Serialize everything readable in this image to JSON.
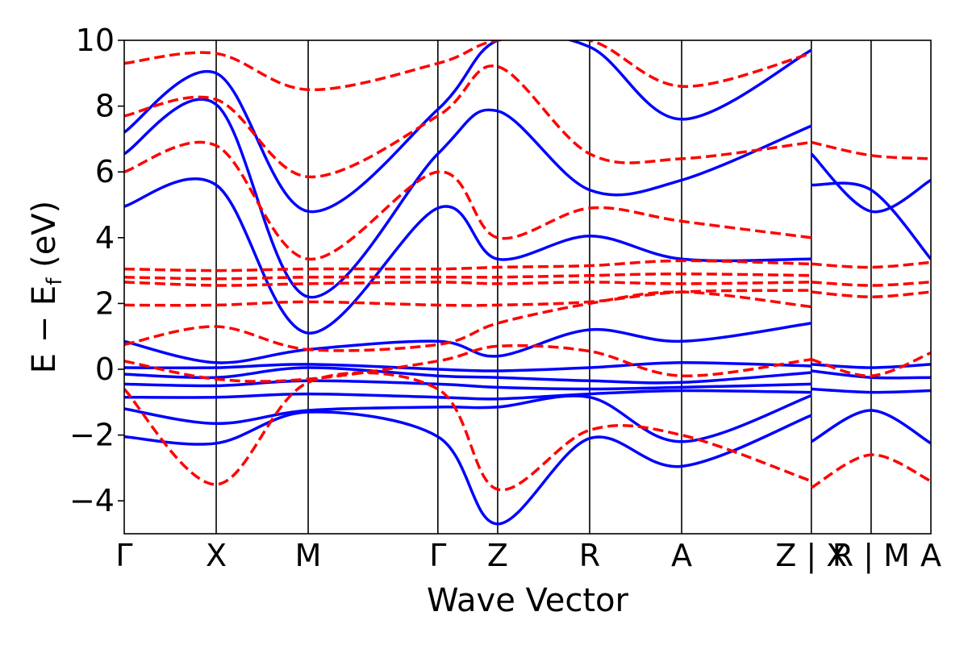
{
  "chart_data": {
    "type": "line",
    "xlabel": "Wave Vector",
    "ylabel": {
      "main": "E − E",
      "subscript": "f",
      "unit": " (eV)"
    },
    "ylim": [
      -5,
      10
    ],
    "y_ticks": [
      -4,
      -2,
      0,
      2,
      4,
      6,
      8,
      10
    ],
    "y_tick_labels": [
      "−4",
      "−2",
      "0",
      "2",
      "4",
      "6",
      "8",
      "10"
    ],
    "xlim": [
      0,
      8.77
    ],
    "k_points": [
      {
        "label": "Γ",
        "x": 0
      },
      {
        "label": "X",
        "x": 1
      },
      {
        "label": "M",
        "x": 2
      },
      {
        "label": "Γ",
        "x": 3.41
      },
      {
        "label": "Z",
        "x": 4.06
      },
      {
        "label": "R",
        "x": 5.06
      },
      {
        "label": "A",
        "x": 6.06
      },
      {
        "label": "Z | X",
        "x": 7.47
      },
      {
        "label": "R | M",
        "x": 8.12
      },
      {
        "label": "A",
        "x": 8.77
      }
    ],
    "series": [
      {
        "style": "solid",
        "color": "#0000ff",
        "bands": [
          {
            "x": [
              0,
              1,
              2,
              3.41,
              4.06,
              5.06,
              6.06,
              7.47
            ],
            "y": [
              -2.05,
              -2.25,
              -1.3,
              -2.05,
              -4.7,
              -2.1,
              -2.95,
              -1.4
            ]
          },
          {
            "x": [
              0,
              1,
              2,
              3.41,
              4.06,
              5.06,
              6.06,
              7.47
            ],
            "y": [
              -1.2,
              -1.65,
              -1.25,
              -1.15,
              -1.15,
              -0.85,
              -2.2,
              -0.8
            ]
          },
          {
            "x": [
              0,
              1,
              2,
              3.41,
              4.06,
              5.06,
              6.06,
              7.47
            ],
            "y": [
              -0.85,
              -0.85,
              -0.75,
              -0.85,
              -0.9,
              -0.75,
              -0.65,
              -0.7
            ]
          },
          {
            "x": [
              0,
              1,
              2,
              3.41,
              4.06,
              5.06,
              6.06,
              7.47
            ],
            "y": [
              -0.45,
              -0.5,
              -0.35,
              -0.45,
              -0.55,
              -0.6,
              -0.55,
              -0.45
            ]
          },
          {
            "x": [
              0,
              1,
              2,
              3.41,
              4.06,
              5.06,
              6.06,
              7.47
            ],
            "y": [
              -0.15,
              -0.25,
              0.05,
              -0.2,
              -0.25,
              -0.35,
              -0.4,
              -0.1
            ]
          },
          {
            "x": [
              0,
              1,
              2,
              3.41,
              4.06,
              5.06,
              6.06,
              7.47
            ],
            "y": [
              0.05,
              0.05,
              0.15,
              0.0,
              -0.05,
              0.05,
              0.2,
              0.1
            ]
          },
          {
            "x": [
              0,
              1,
              2,
              3.41,
              4.06,
              5.06,
              6.06,
              7.47
            ],
            "y": [
              0.85,
              0.2,
              0.6,
              0.85,
              0.4,
              1.2,
              0.85,
              1.4
            ]
          },
          {
            "x": [
              0,
              1,
              2,
              3.41,
              4.06,
              5.06,
              6.06,
              7.47
            ],
            "y": [
              4.95,
              5.6,
              1.1,
              4.9,
              3.35,
              4.05,
              3.35,
              3.35
            ]
          },
          {
            "x": [
              0,
              1,
              2,
              3.41,
              4.06,
              5.06,
              6.06,
              7.47
            ],
            "y": [
              6.55,
              8.05,
              2.2,
              6.55,
              7.85,
              5.45,
              5.75,
              7.4
            ]
          },
          {
            "x": [
              0,
              1,
              2,
              3.41,
              4.06,
              5.06,
              6.06,
              7.47
            ],
            "y": [
              7.2,
              9.0,
              4.8,
              7.9,
              10.0,
              9.8,
              7.6,
              9.7
            ]
          },
          {
            "x": [
              7.47,
              8.12,
              8.77
            ],
            "y": [
              -2.2,
              -1.25,
              -2.25
            ]
          },
          {
            "x": [
              7.47,
              8.12,
              8.77
            ],
            "y": [
              -0.6,
              -0.7,
              -0.65
            ]
          },
          {
            "x": [
              7.47,
              8.12,
              8.77
            ],
            "y": [
              -0.05,
              -0.25,
              -0.25
            ]
          },
          {
            "x": [
              7.47,
              8.12,
              8.77
            ],
            "y": [
              0.15,
              0.05,
              0.15
            ]
          },
          {
            "x": [
              7.47,
              8.12,
              8.77
            ],
            "y": [
              5.6,
              5.45,
              3.35
            ]
          },
          {
            "x": [
              7.47,
              8.12,
              8.77
            ],
            "y": [
              6.55,
              4.8,
              5.75
            ]
          }
        ]
      },
      {
        "style": "dashed",
        "color": "#ff0000",
        "bands": [
          {
            "x": [
              0,
              1,
              2,
              3.41,
              4.06,
              5.06,
              6.06,
              7.47
            ],
            "y": [
              -0.6,
              -3.5,
              -0.4,
              -0.6,
              -3.65,
              -1.85,
              -2.0,
              -3.4
            ]
          },
          {
            "x": [
              0,
              1,
              2,
              3.41,
              4.06,
              5.06,
              6.06,
              7.47
            ],
            "y": [
              0.25,
              -0.3,
              -0.3,
              0.25,
              0.7,
              0.55,
              -0.2,
              0.3
            ]
          },
          {
            "x": [
              0,
              1,
              2,
              3.41,
              4.06,
              5.06,
              6.06,
              7.47
            ],
            "y": [
              0.75,
              1.3,
              0.6,
              0.75,
              1.4,
              2.0,
              2.35,
              1.9
            ]
          },
          {
            "x": [
              0,
              1,
              2,
              3.41,
              4.06,
              5.06,
              6.06,
              7.47
            ],
            "y": [
              1.95,
              1.95,
              2.05,
              1.95,
              1.95,
              2.05,
              2.35,
              2.4
            ]
          },
          {
            "x": [
              0,
              1,
              2,
              3.41,
              4.06,
              5.06,
              6.06,
              7.47
            ],
            "y": [
              2.65,
              2.55,
              2.6,
              2.65,
              2.6,
              2.65,
              2.6,
              2.65
            ]
          },
          {
            "x": [
              0,
              1,
              2,
              3.41,
              4.06,
              5.06,
              6.06,
              7.47
            ],
            "y": [
              2.8,
              2.75,
              2.8,
              2.8,
              2.8,
              2.85,
              2.9,
              2.85
            ]
          },
          {
            "x": [
              0,
              1,
              2,
              3.41,
              4.06,
              5.06,
              6.06,
              7.47
            ],
            "y": [
              3.05,
              3.0,
              3.05,
              3.05,
              3.1,
              3.15,
              3.3,
              3.2
            ]
          },
          {
            "x": [
              0,
              1,
              2,
              3.41,
              4.06,
              5.06,
              6.06,
              7.47
            ],
            "y": [
              6.0,
              6.8,
              3.35,
              6.0,
              4.0,
              4.9,
              4.5,
              4.0
            ]
          },
          {
            "x": [
              0,
              1,
              2,
              3.41,
              4.06,
              5.06,
              6.06,
              7.47
            ],
            "y": [
              7.7,
              8.2,
              5.85,
              7.7,
              9.2,
              6.55,
              6.4,
              6.9
            ]
          },
          {
            "x": [
              0,
              1,
              2,
              3.41,
              4.06,
              5.06,
              6.06,
              7.47
            ],
            "y": [
              9.3,
              9.6,
              8.5,
              9.3,
              10.0,
              10.0,
              8.6,
              9.6
            ]
          },
          {
            "x": [
              7.47,
              8.12,
              8.77
            ],
            "y": [
              -3.6,
              -2.6,
              -3.4
            ]
          },
          {
            "x": [
              7.47,
              8.12,
              8.77
            ],
            "y": [
              0.3,
              -0.2,
              0.5
            ]
          },
          {
            "x": [
              7.47,
              8.12,
              8.77
            ],
            "y": [
              2.35,
              2.2,
              2.35
            ]
          },
          {
            "x": [
              7.47,
              8.12,
              8.77
            ],
            "y": [
              2.65,
              2.55,
              2.65
            ]
          },
          {
            "x": [
              7.47,
              8.12,
              8.77
            ],
            "y": [
              3.2,
              3.1,
              3.25
            ]
          },
          {
            "x": [
              7.47,
              8.12,
              8.77
            ],
            "y": [
              6.9,
              6.5,
              6.4
            ]
          }
        ]
      }
    ]
  }
}
